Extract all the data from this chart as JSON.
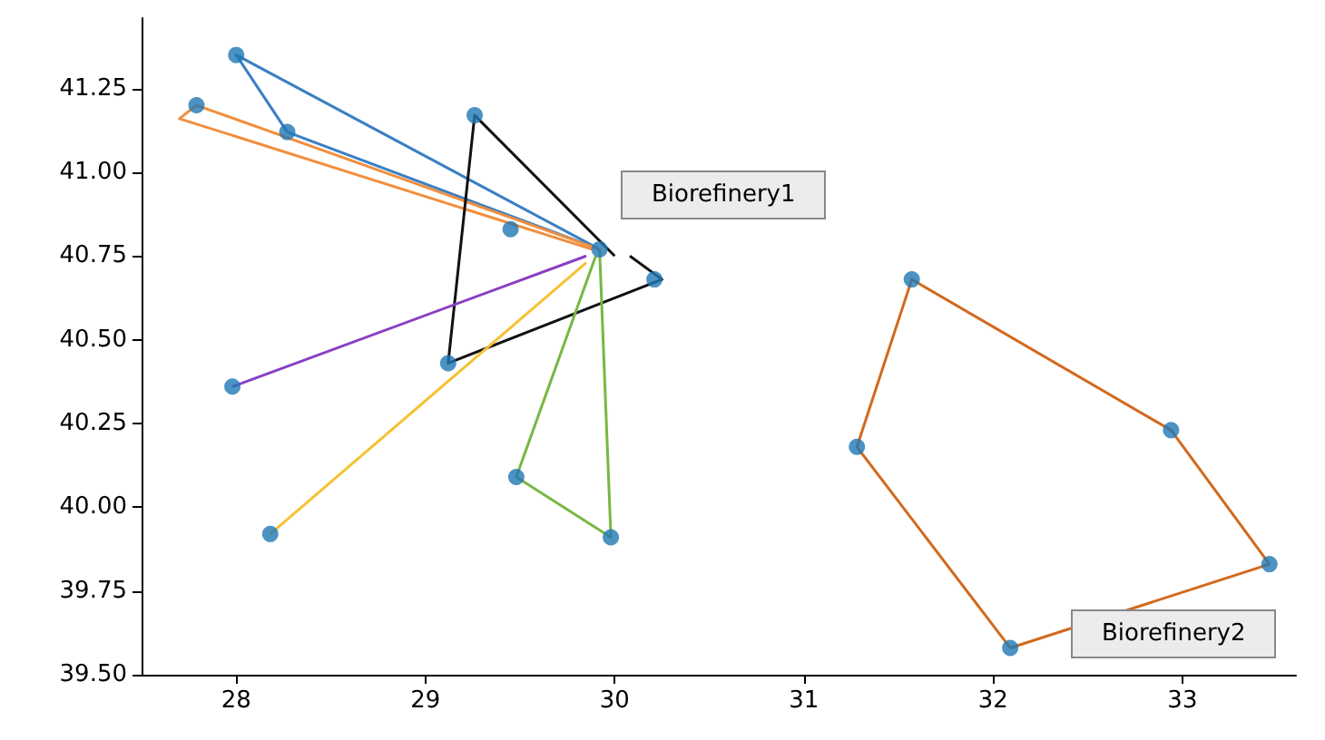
{
  "chart_data": {
    "type": "scatter",
    "marker": "circle",
    "grid": false,
    "x": [
      28.0,
      27.79,
      28.27,
      29.26,
      29.45,
      29.92,
      30.21,
      29.12,
      27.98,
      29.48,
      28.18,
      29.98,
      31.57,
      31.28,
      32.94,
      33.46,
      32.09
    ],
    "values": [
      41.35,
      41.2,
      41.12,
      41.17,
      40.83,
      40.77,
      40.68,
      40.43,
      40.36,
      40.09,
      39.92,
      39.91,
      40.68,
      40.18,
      40.23,
      39.83,
      39.58
    ],
    "color": "#1f77b4",
    "series": [
      {
        "type": "line",
        "marker": "none",
        "color": "#3a7fc4",
        "x": [
          29.92,
          28.0,
          28.27
        ],
        "values": [
          40.77,
          41.35,
          41.12
        ]
      },
      {
        "type": "line",
        "marker": "none",
        "color": "#3a7fc4",
        "x": [
          28.27,
          29.92
        ],
        "values": [
          41.12,
          40.77
        ]
      },
      {
        "type": "line",
        "marker": "none",
        "color": "#f28e3c",
        "x": [
          29.92,
          27.79,
          27.7,
          29.88
        ],
        "values": [
          40.77,
          41.2,
          41.16,
          40.77
        ]
      },
      {
        "type": "line",
        "marker": "none",
        "color": "#111111",
        "x": [
          30.0,
          29.26,
          29.12,
          30.25,
          30.08
        ],
        "values": [
          40.75,
          41.17,
          40.43,
          40.68,
          40.75
        ]
      },
      {
        "type": "line",
        "marker": "none",
        "color": "#8a3fc4",
        "x": [
          27.98,
          29.85
        ],
        "values": [
          40.36,
          40.75
        ]
      },
      {
        "type": "line",
        "marker": "none",
        "color": "#f5c232",
        "x": [
          28.18,
          29.85
        ],
        "values": [
          39.92,
          40.73
        ]
      },
      {
        "type": "line",
        "marker": "none",
        "color": "#77b843",
        "x": [
          29.9,
          29.48,
          29.98,
          29.92
        ],
        "values": [
          40.75,
          40.09,
          39.91,
          40.77
        ]
      },
      {
        "type": "line",
        "marker": "none",
        "color": "#d2691e",
        "x": [
          33.46,
          32.94,
          31.57,
          31.28,
          32.09
        ],
        "values": [
          39.83,
          40.23,
          40.68,
          40.18,
          39.58
        ]
      },
      {
        "type": "line",
        "marker": "none",
        "color": "#d2691e",
        "x": [
          32.09,
          33.46
        ],
        "values": [
          39.58,
          39.83
        ]
      }
    ],
    "xlim": [
      27.5,
      33.6
    ],
    "xticks": [
      28,
      29,
      30,
      31,
      32,
      33
    ],
    "ylim": [
      39.5,
      41.46
    ],
    "yticks": [
      {
        "value": 39.5,
        "label": "39.50"
      },
      39.75,
      {
        "value": 40,
        "label": "40.00"
      },
      40.25,
      {
        "value": 40.5,
        "label": "40.50"
      },
      40.75,
      {
        "value": 41,
        "label": "41.00"
      },
      41.25
    ],
    "annotations": [
      "Biorefinery1",
      "Biorefinery2"
    ]
  }
}
